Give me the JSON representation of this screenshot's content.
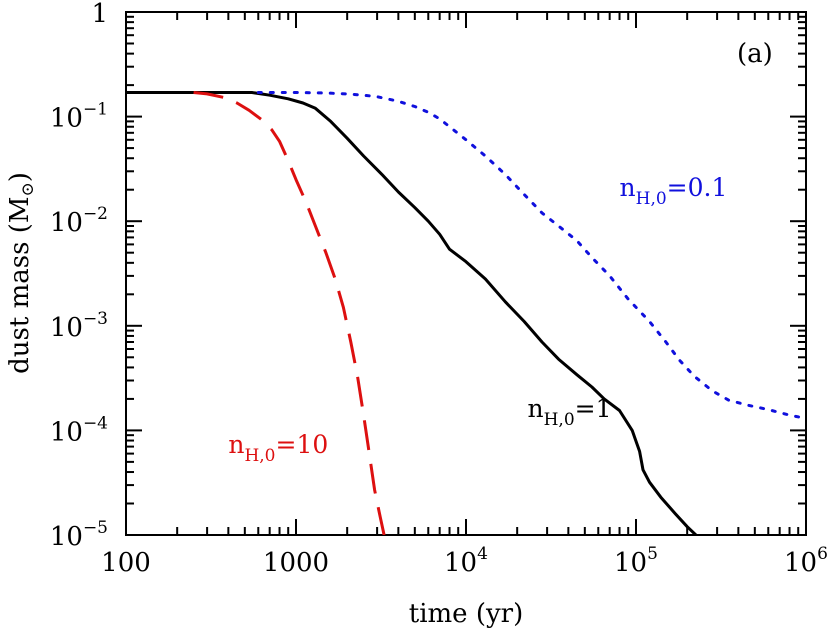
{
  "chart_data": {
    "type": "line",
    "xlabel": "time (yr)",
    "ylabel_main": "dust mass (M",
    "ylabel_symbol": "⊙",
    "ylabel_close": ")",
    "xscale": "log",
    "yscale": "log",
    "xlim": [
      100,
      1000000
    ],
    "ylim": [
      1e-05,
      1
    ],
    "panel_label": "(a)",
    "x_ticks": [
      {
        "value": 100,
        "base": "100",
        "exp": ""
      },
      {
        "value": 1000,
        "base": "1000",
        "exp": ""
      },
      {
        "value": 10000,
        "base": "10",
        "exp": "4"
      },
      {
        "value": 100000,
        "base": "10",
        "exp": "5"
      },
      {
        "value": 1000000,
        "base": "10",
        "exp": "6"
      }
    ],
    "y_ticks": [
      {
        "value": 1,
        "base": "1",
        "exp": ""
      },
      {
        "value": 0.1,
        "base": "10",
        "exp": "−1"
      },
      {
        "value": 0.01,
        "base": "10",
        "exp": "−2"
      },
      {
        "value": 0.001,
        "base": "10",
        "exp": "−3"
      },
      {
        "value": 0.0001,
        "base": "10",
        "exp": "−4"
      },
      {
        "value": 1e-05,
        "base": "10",
        "exp": "−5"
      }
    ],
    "series": [
      {
        "key": "n1",
        "label_main": "n",
        "label_sub": "H,0",
        "label_value": "=1",
        "color": "#000000",
        "dash": "solid",
        "label_at": [
          23000,
          0.000135
        ],
        "x": [
          100,
          300,
          550,
          700,
          900,
          1100,
          1300,
          1600,
          2000,
          2500,
          3200,
          4000,
          5000,
          6000,
          7000,
          8000,
          10000,
          13000,
          17000,
          22000,
          28000,
          35000,
          45000,
          55000,
          65000,
          80000,
          95000,
          105000,
          110000,
          120000,
          140000,
          170000,
          200000,
          225000
        ],
        "y": [
          0.17,
          0.17,
          0.17,
          0.16,
          0.148,
          0.135,
          0.12,
          0.09,
          0.062,
          0.042,
          0.028,
          0.019,
          0.0135,
          0.01,
          0.0075,
          0.0054,
          0.0041,
          0.0028,
          0.0017,
          0.0011,
          0.0007,
          0.00048,
          0.00034,
          0.00026,
          0.0002,
          0.000155,
          0.0001,
          6.3e-05,
          4.2e-05,
          3.2e-05,
          2.3e-05,
          1.6e-05,
          1.2e-05,
          1e-05
        ]
      },
      {
        "key": "n01",
        "label_main": "n",
        "label_sub": "H,0",
        "label_value": "=0.1",
        "color": "#1010dd",
        "dash": "dotted",
        "label_at": [
          80000,
          0.0175
        ],
        "x": [
          600,
          1000,
          1500,
          2000,
          2500,
          3000,
          4000,
          5000,
          6000,
          7000,
          8000,
          10000,
          13000,
          17000,
          22000,
          28000,
          35000,
          45000,
          55000,
          70000,
          90000,
          120000,
          150000,
          180000,
          220000,
          280000,
          350000,
          450000,
          600000,
          800000,
          1000000
        ],
        "y": [
          0.17,
          0.17,
          0.168,
          0.165,
          0.16,
          0.155,
          0.14,
          0.125,
          0.11,
          0.095,
          0.08,
          0.06,
          0.042,
          0.028,
          0.018,
          0.012,
          0.009,
          0.0065,
          0.0045,
          0.003,
          0.0018,
          0.0011,
          0.0007,
          0.00047,
          0.00033,
          0.00024,
          0.000195,
          0.000175,
          0.000158,
          0.00014,
          0.00013
        ]
      },
      {
        "key": "n10",
        "label_main": "n",
        "label_sub": "H,0",
        "label_value": "=10",
        "color": "#dd1010",
        "dash": "dashed",
        "label_at": [
          400,
          6.05e-05
        ],
        "x": [
          250,
          300,
          380,
          450,
          530,
          630,
          720,
          800,
          900,
          1000,
          1150,
          1300,
          1500,
          1700,
          1900,
          2100,
          2300,
          2500,
          2700,
          2900,
          3100,
          3300
        ],
        "y": [
          0.17,
          0.165,
          0.152,
          0.135,
          0.115,
          0.093,
          0.075,
          0.058,
          0.038,
          0.025,
          0.015,
          0.009,
          0.005,
          0.0028,
          0.0015,
          0.0007,
          0.00033,
          0.00014,
          6e-05,
          2.7e-05,
          1.6e-05,
          1e-05
        ]
      }
    ]
  }
}
